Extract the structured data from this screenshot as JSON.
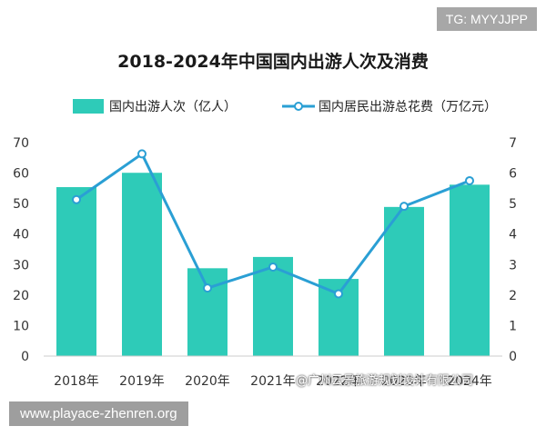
{
  "overlay": {
    "tag": "TG: MYYJJPP",
    "url": "www.playace-zhenren.org",
    "watermark": "@广州云景旅游规划设计有限公司"
  },
  "colors": {
    "bar": "#2ecbb8",
    "line": "#2a9fd4",
    "marker_fill": "#ffffff"
  },
  "chart_data": {
    "type": "bar",
    "title": "2018-2024年中国国内出游人次及消费",
    "categories": [
      "2018年",
      "2019年",
      "2020年",
      "2021年",
      "2022年",
      "2023年",
      "2024年"
    ],
    "series": [
      {
        "name": "国内出游人次（亿人）",
        "type": "bar",
        "axis": "left",
        "values": [
          55.4,
          60.1,
          28.8,
          32.5,
          25.3,
          48.9,
          56.2
        ]
      },
      {
        "name": "国内居民出游总花费（万亿元）",
        "type": "line",
        "axis": "right",
        "values": [
          5.13,
          6.63,
          2.23,
          2.92,
          2.04,
          4.91,
          5.75
        ]
      }
    ],
    "y_left": {
      "min": 0,
      "max": 70,
      "ticks": [
        0,
        10,
        20,
        30,
        40,
        50,
        60,
        70
      ]
    },
    "y_right": {
      "min": 0,
      "max": 7,
      "ticks": [
        0,
        1,
        2,
        3,
        4,
        5,
        6,
        7
      ]
    },
    "grid": false,
    "legend_position": "top"
  }
}
